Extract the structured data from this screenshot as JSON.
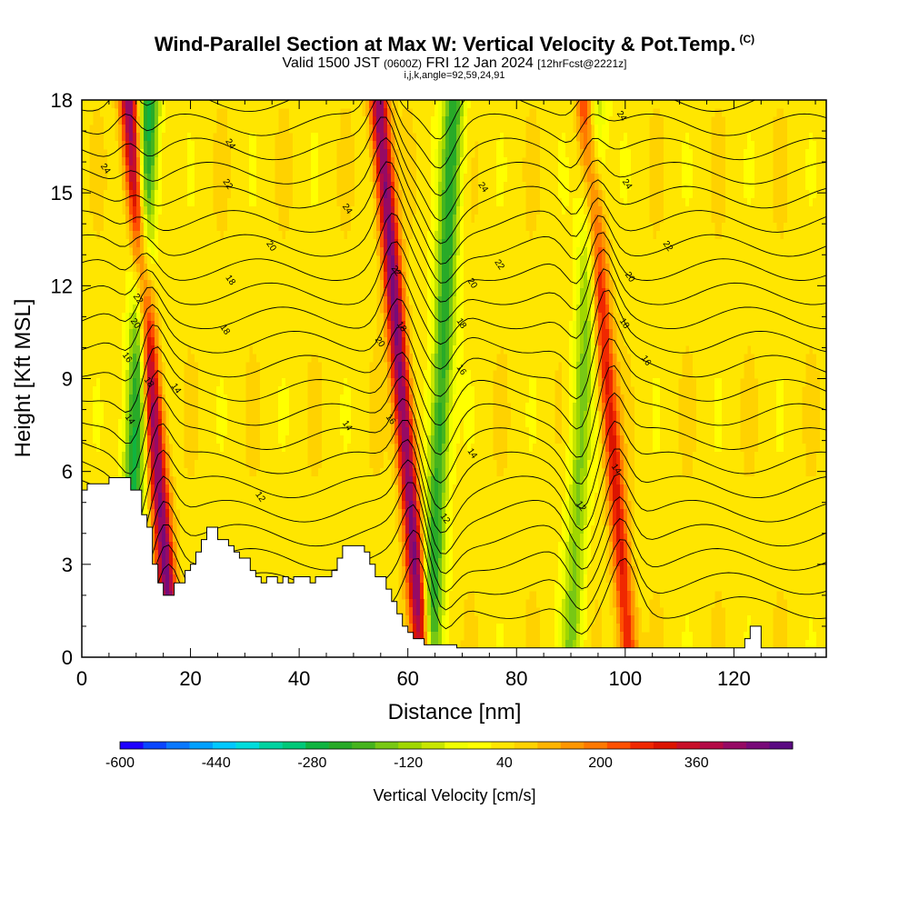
{
  "chart_data": {
    "type": "heatmap",
    "title": "Wind-Parallel Section at Max W: Vertical Velocity & Pot.Temp.",
    "title_mark": "(C)",
    "subtitle_pre": "Valid 1500 JST",
    "subtitle_zulu": "(0600Z)",
    "subtitle_date": "FRI 12 Jan 2024",
    "subtitle_fcst": "[12hrFcst@2221z]",
    "subtitle2": "i,j,k,angle=92,59,24,91",
    "xlabel": "Distance [nm]",
    "ylabel": "Height [Kft MSL]",
    "xlim": [
      0,
      137
    ],
    "ylim": [
      0,
      18
    ],
    "x_ticks": [
      "0",
      "20",
      "40",
      "60",
      "80",
      "100",
      "120"
    ],
    "y_ticks": [
      "0",
      "3",
      "6",
      "9",
      "12",
      "15",
      "18"
    ],
    "colorbar": {
      "label": "Vertical Velocity [cm/s]",
      "range": [
        -600,
        520
      ],
      "tick_labels": [
        "-600",
        "-440",
        "-280",
        "-120",
        "40",
        "200",
        "360"
      ],
      "colors": [
        "#1e00ff",
        "#0a46ff",
        "#0a78ff",
        "#00a0ff",
        "#00c8ff",
        "#00dcdc",
        "#00d2a0",
        "#00c878",
        "#10b440",
        "#28aa28",
        "#46b41e",
        "#78c814",
        "#a0d700",
        "#c8e600",
        "#f0ff00",
        "#ffff00",
        "#ffe600",
        "#ffd200",
        "#ffb400",
        "#ff9600",
        "#ff7800",
        "#ff5000",
        "#f02800",
        "#dc1400",
        "#c80f28",
        "#b40a46",
        "#960a64",
        "#780a78",
        "#5a0a82"
      ]
    },
    "updrafts": [
      {
        "x": 14,
        "w_max": 420
      },
      {
        "x": 60,
        "w_max": 420
      },
      {
        "x": 98,
        "w_max": 260
      }
    ],
    "downdrafts": [
      {
        "x": 10,
        "w_min": -320
      },
      {
        "x": 66,
        "w_min": -280
      },
      {
        "x": 92,
        "w_min": -180
      }
    ],
    "contour_labels": [
      {
        "text": "24",
        "x": 4.5,
        "y": 15.8
      },
      {
        "text": "22",
        "x": 10.5,
        "y": 11.6
      },
      {
        "text": "20",
        "x": 10,
        "y": 10.8
      },
      {
        "text": "16",
        "x": 8.5,
        "y": 9.7
      },
      {
        "text": "14",
        "x": 9,
        "y": 7.7
      },
      {
        "text": "18",
        "x": 12.5,
        "y": 8.9
      },
      {
        "text": "14",
        "x": 17.5,
        "y": 8.7
      },
      {
        "text": "24",
        "x": 27.5,
        "y": 16.6
      },
      {
        "text": "22",
        "x": 27,
        "y": 15.3
      },
      {
        "text": "20",
        "x": 35,
        "y": 13.3
      },
      {
        "text": "18",
        "x": 27.5,
        "y": 12.2
      },
      {
        "text": "18",
        "x": 26.5,
        "y": 10.6
      },
      {
        "text": "24",
        "x": 49,
        "y": 14.5
      },
      {
        "text": "14",
        "x": 49,
        "y": 7.5
      },
      {
        "text": "12",
        "x": 33,
        "y": 5.2
      },
      {
        "text": "22",
        "x": 58,
        "y": 12.5
      },
      {
        "text": "18",
        "x": 59,
        "y": 10.7
      },
      {
        "text": "20",
        "x": 55,
        "y": 10.2
      },
      {
        "text": "16",
        "x": 57,
        "y": 7.7
      },
      {
        "text": "24",
        "x": 74,
        "y": 15.2
      },
      {
        "text": "22",
        "x": 77,
        "y": 12.7
      },
      {
        "text": "20",
        "x": 72,
        "y": 12.1
      },
      {
        "text": "18",
        "x": 70,
        "y": 10.8
      },
      {
        "text": "16",
        "x": 70,
        "y": 9.3
      },
      {
        "text": "14",
        "x": 72,
        "y": 6.6
      },
      {
        "text": "12",
        "x": 67,
        "y": 4.5
      },
      {
        "text": "12",
        "x": 92,
        "y": 4.9
      },
      {
        "text": "24",
        "x": 99.5,
        "y": 17.5
      },
      {
        "text": "24",
        "x": 100.5,
        "y": 15.3
      },
      {
        "text": "22",
        "x": 108,
        "y": 13.3
      },
      {
        "text": "20",
        "x": 101,
        "y": 12.3
      },
      {
        "text": "18",
        "x": 100,
        "y": 10.8
      },
      {
        "text": "16",
        "x": 104,
        "y": 9.6
      },
      {
        "text": "14",
        "x": 98.5,
        "y": 6.1
      }
    ]
  }
}
